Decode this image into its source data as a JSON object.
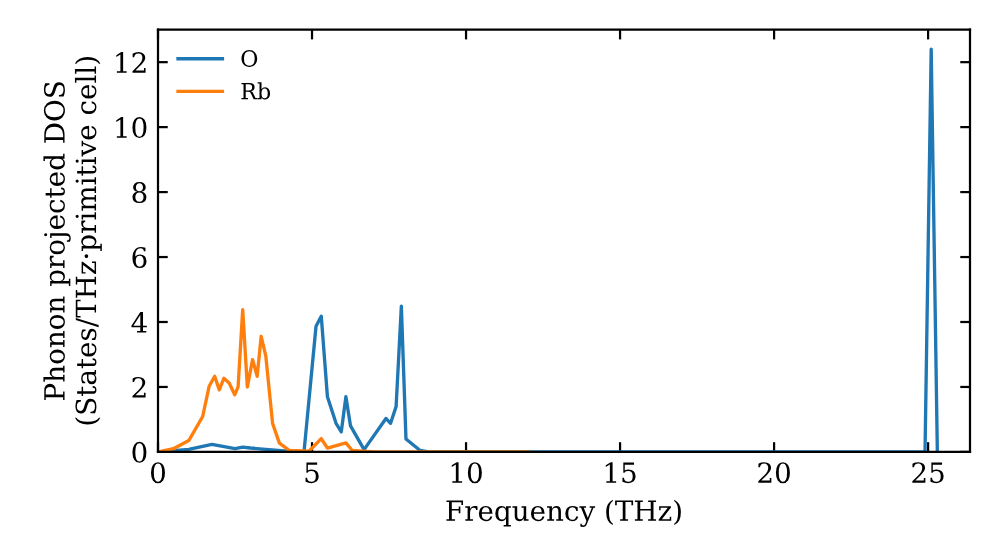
{
  "chart_data": {
    "type": "line",
    "xlabel": "Frequency (THz)",
    "ylabel": "Phonon projected DOS\n(States/THz·primitive cell)",
    "xlim": [
      0,
      26.36
    ],
    "ylim": [
      0,
      13
    ],
    "xticks": [
      0,
      5,
      10,
      15,
      20,
      25
    ],
    "yticks": [
      0,
      2,
      4,
      6,
      8,
      10,
      12
    ],
    "legend": "top left",
    "grid": false,
    "series": [
      {
        "name": "O",
        "color": "#1f77b4",
        "x": [
          0,
          1.0,
          1.75,
          2.5,
          2.75,
          3.0,
          3.5,
          4.5,
          4.74,
          5.13,
          5.3,
          5.5,
          5.78,
          5.95,
          6.1,
          6.25,
          6.69,
          7.4,
          7.55,
          7.73,
          7.9,
          8.05,
          8.5,
          8.8,
          12,
          20,
          24.9,
          25.1,
          25.3
        ],
        "values": [
          0,
          0.08,
          0.23,
          0.1,
          0.15,
          0.12,
          0.08,
          0,
          0,
          3.87,
          4.18,
          1.7,
          0.88,
          0.62,
          1.7,
          0.8,
          0.07,
          1.03,
          0.88,
          1.4,
          4.49,
          0.4,
          0.05,
          0,
          0,
          0,
          0,
          12.4,
          0
        ]
      },
      {
        "name": "Rb",
        "color": "#ff7f0e",
        "x": [
          0,
          0.5,
          1.0,
          1.45,
          1.66,
          1.84,
          1.99,
          2.14,
          2.31,
          2.49,
          2.6,
          2.75,
          2.9,
          3.07,
          3.22,
          3.35,
          3.5,
          3.72,
          3.94,
          4.26,
          4.9,
          5.3,
          5.5,
          6.1,
          6.3,
          7,
          12
        ],
        "values": [
          0,
          0.1,
          0.35,
          1.09,
          2.02,
          2.33,
          1.91,
          2.27,
          2.12,
          1.76,
          2.0,
          4.38,
          2.0,
          2.84,
          2.33,
          3.56,
          2.95,
          0.88,
          0.27,
          0.05,
          0.02,
          0.41,
          0.12,
          0.28,
          0.05,
          0,
          0
        ]
      }
    ]
  }
}
